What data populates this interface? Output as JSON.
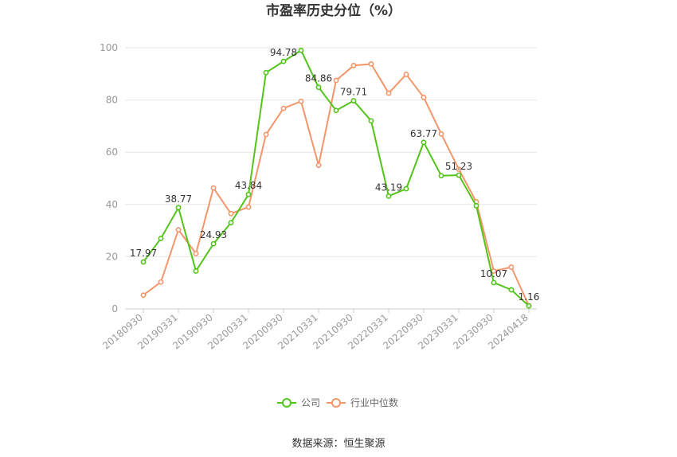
{
  "chart_data": {
    "type": "line",
    "title": "市盈率历史分位（%）",
    "xlabel": "",
    "ylabel": "",
    "ylim": [
      0,
      100
    ],
    "yticks": [
      0,
      20,
      40,
      60,
      80,
      100
    ],
    "x_tick_labels": [
      "20180930",
      "20190331",
      "20190930",
      "20200331",
      "20200930",
      "20210331",
      "20210930",
      "20220331",
      "20220930",
      "20230331",
      "20230930",
      "20240418"
    ],
    "grid": true,
    "legend_position": "bottom-center",
    "series": [
      {
        "name": "公司",
        "color": "#52c41a",
        "values": [
          17.97,
          27.0,
          38.77,
          14.5,
          24.93,
          33.0,
          43.84,
          90.5,
          94.78,
          99.0,
          84.86,
          76.0,
          79.71,
          72.0,
          43.19,
          46.0,
          63.77,
          51.0,
          51.23,
          39.5,
          10.07,
          7.3,
          1.16
        ],
        "data_labels": {
          "0": "17.97",
          "2": "38.77",
          "4": "24.93",
          "6": "43.84",
          "8": "94.78",
          "10": "84.86",
          "12": "79.71",
          "14": "43.19",
          "16": "63.77",
          "18": "51.23",
          "20": "10.07",
          "22": "1.16"
        }
      },
      {
        "name": "行业中位数",
        "color": "#f4956a",
        "values": [
          5.3,
          10.3,
          30.3,
          21.2,
          46.3,
          36.5,
          39.0,
          66.8,
          76.8,
          79.5,
          55.0,
          87.5,
          93.2,
          93.8,
          82.6,
          89.8,
          81.0,
          67.0,
          53.5,
          41.0,
          14.5,
          16.0,
          1.2
        ]
      }
    ]
  },
  "source_text": "数据来源：恒生聚源"
}
